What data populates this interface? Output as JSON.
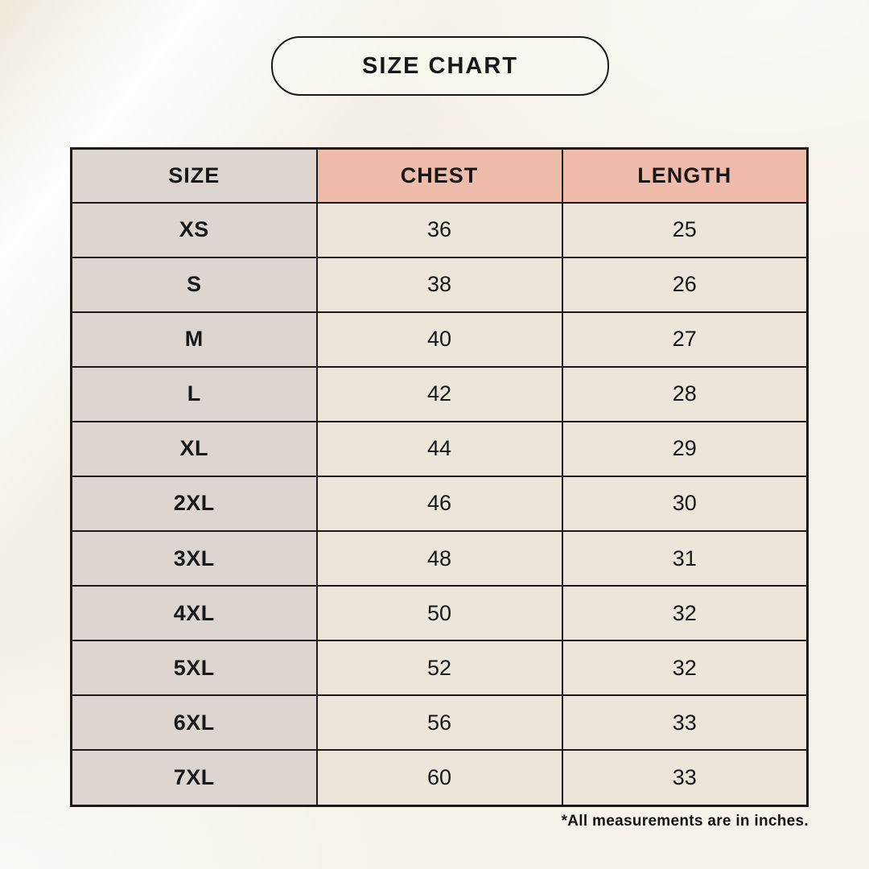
{
  "chart_data": {
    "type": "table",
    "title": "SIZE CHART",
    "columns": [
      "SIZE",
      "CHEST",
      "LENGTH"
    ],
    "rows": [
      [
        "XS",
        "36",
        "25"
      ],
      [
        "S",
        "38",
        "26"
      ],
      [
        "M",
        "40",
        "27"
      ],
      [
        "L",
        "42",
        "28"
      ],
      [
        "XL",
        "44",
        "29"
      ],
      [
        "2XL",
        "46",
        "30"
      ],
      [
        "3XL",
        "48",
        "31"
      ],
      [
        "4XL",
        "50",
        "32"
      ],
      [
        "5XL",
        "52",
        "32"
      ],
      [
        "6XL",
        "56",
        "33"
      ],
      [
        "7XL",
        "60",
        "33"
      ]
    ],
    "footnote": "*All measurements are in inches."
  },
  "colors": {
    "background": "#f6f2e9",
    "header_accent": "#efbcab",
    "size_column": "#dcd5d0",
    "cell": "#ece5da",
    "border": "#1c1917",
    "text": "#181818"
  }
}
